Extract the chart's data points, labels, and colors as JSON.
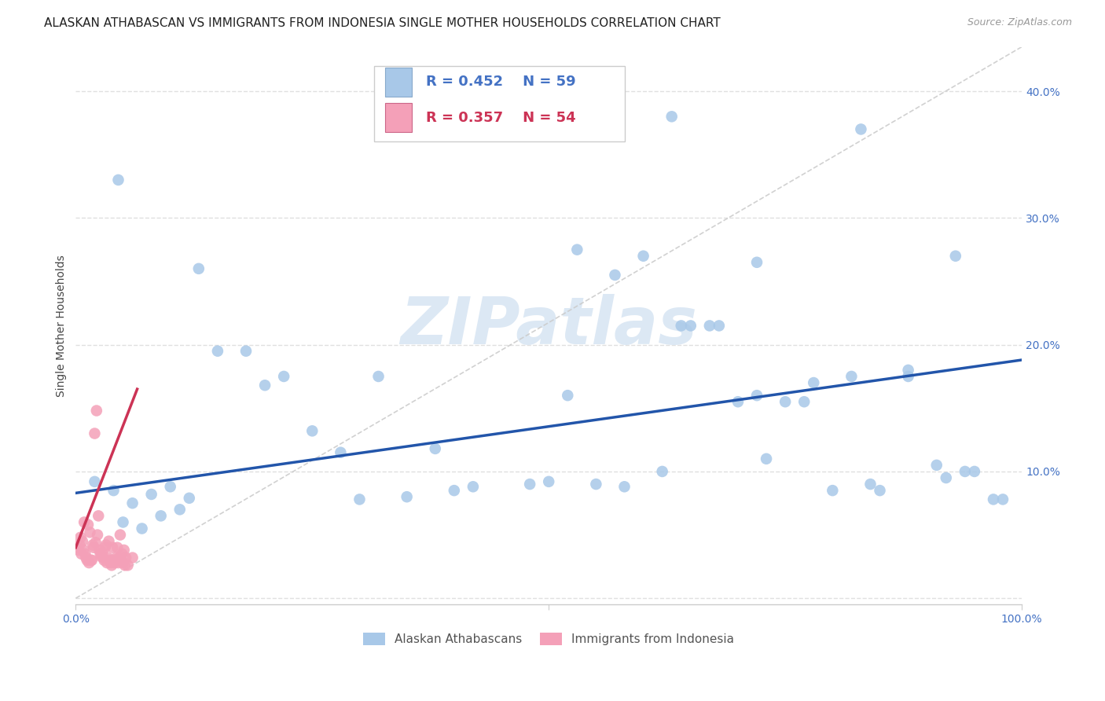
{
  "title": "ALASKAN ATHABASCAN VS IMMIGRANTS FROM INDONESIA SINGLE MOTHER HOUSEHOLDS CORRELATION CHART",
  "source": "Source: ZipAtlas.com",
  "ylabel": "Single Mother Households",
  "xlim": [
    0,
    1.0
  ],
  "ylim": [
    -0.005,
    0.435
  ],
  "blue_color": "#a8c8e8",
  "pink_color": "#f4a0b8",
  "blue_line_color": "#2255aa",
  "pink_line_color": "#cc3355",
  "diag_color": "#cccccc",
  "blue_R": 0.452,
  "blue_N": 59,
  "pink_R": 0.357,
  "pink_N": 54,
  "blue_line_x0": 0.0,
  "blue_line_y0": 0.083,
  "blue_line_x1": 1.0,
  "blue_line_y1": 0.188,
  "pink_line_x0": 0.0,
  "pink_line_y0": 0.04,
  "pink_line_x1": 0.065,
  "pink_line_y1": 0.165,
  "blue_scatter_x": [
    0.02,
    0.04,
    0.05,
    0.06,
    0.07,
    0.08,
    0.09,
    0.1,
    0.11,
    0.12,
    0.045,
    0.13,
    0.18,
    0.22,
    0.28,
    0.32,
    0.38,
    0.42,
    0.48,
    0.52,
    0.58,
    0.62,
    0.65,
    0.68,
    0.72,
    0.75,
    0.78,
    0.82,
    0.85,
    0.88,
    0.92,
    0.95,
    0.98,
    0.15,
    0.2,
    0.25,
    0.3,
    0.35,
    0.4,
    0.55,
    0.6,
    0.64,
    0.67,
    0.7,
    0.73,
    0.77,
    0.8,
    0.84,
    0.88,
    0.91,
    0.94,
    0.97,
    0.5,
    0.53,
    0.57,
    0.63,
    0.72,
    0.83,
    0.93
  ],
  "blue_scatter_y": [
    0.092,
    0.085,
    0.06,
    0.075,
    0.055,
    0.082,
    0.065,
    0.088,
    0.07,
    0.079,
    0.33,
    0.26,
    0.195,
    0.175,
    0.115,
    0.175,
    0.118,
    0.088,
    0.09,
    0.16,
    0.088,
    0.1,
    0.215,
    0.215,
    0.16,
    0.155,
    0.17,
    0.175,
    0.085,
    0.175,
    0.095,
    0.1,
    0.078,
    0.195,
    0.168,
    0.132,
    0.078,
    0.08,
    0.085,
    0.09,
    0.27,
    0.215,
    0.215,
    0.155,
    0.11,
    0.155,
    0.085,
    0.09,
    0.18,
    0.105,
    0.1,
    0.078,
    0.092,
    0.275,
    0.255,
    0.38,
    0.265,
    0.37,
    0.27
  ],
  "pink_scatter_x": [
    0.002,
    0.003,
    0.004,
    0.005,
    0.006,
    0.007,
    0.008,
    0.009,
    0.01,
    0.011,
    0.012,
    0.013,
    0.014,
    0.015,
    0.016,
    0.017,
    0.018,
    0.019,
    0.02,
    0.021,
    0.022,
    0.023,
    0.024,
    0.025,
    0.026,
    0.027,
    0.028,
    0.029,
    0.03,
    0.031,
    0.032,
    0.033,
    0.034,
    0.035,
    0.036,
    0.037,
    0.038,
    0.039,
    0.04,
    0.041,
    0.042,
    0.043,
    0.044,
    0.045,
    0.046,
    0.047,
    0.048,
    0.049,
    0.05,
    0.051,
    0.052,
    0.053,
    0.055,
    0.06
  ],
  "pink_scatter_y": [
    0.04,
    0.038,
    0.042,
    0.048,
    0.035,
    0.045,
    0.038,
    0.06,
    0.035,
    0.032,
    0.03,
    0.058,
    0.028,
    0.052,
    0.03,
    0.03,
    0.042,
    0.04,
    0.13,
    0.044,
    0.148,
    0.05,
    0.065,
    0.038,
    0.035,
    0.033,
    0.036,
    0.032,
    0.03,
    0.04,
    0.042,
    0.028,
    0.032,
    0.045,
    0.03,
    0.028,
    0.026,
    0.04,
    0.03,
    0.028,
    0.03,
    0.032,
    0.04,
    0.028,
    0.032,
    0.05,
    0.03,
    0.035,
    0.028,
    0.038,
    0.026,
    0.032,
    0.026,
    0.032
  ],
  "background_color": "#ffffff",
  "grid_color": "#e0e0e0",
  "watermark_color": "#dce8f4",
  "title_fontsize": 11,
  "axis_label_fontsize": 10,
  "tick_fontsize": 10,
  "legend_fontsize": 13
}
